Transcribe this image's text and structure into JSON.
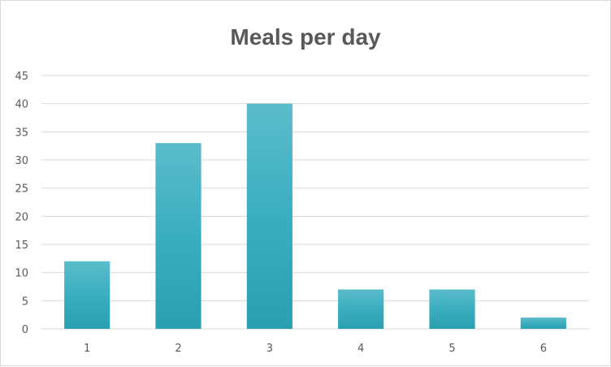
{
  "chart_data": {
    "type": "bar",
    "title": "Meals per day",
    "categories": [
      "1",
      "2",
      "3",
      "4",
      "5",
      "6"
    ],
    "values": [
      12,
      33,
      40,
      7,
      7,
      2
    ],
    "ylim": [
      0,
      45
    ],
    "yticks": [
      "0",
      "5",
      "10",
      "15",
      "20",
      "25",
      "30",
      "35",
      "40",
      "45"
    ],
    "grid": true,
    "legend": "none",
    "colors": {
      "bar": "#3aaebf",
      "bar_top": "#5bbccb",
      "bar_bottom": "#2a9fb0",
      "grid": "#d9d9d9",
      "text": "#595959"
    }
  }
}
